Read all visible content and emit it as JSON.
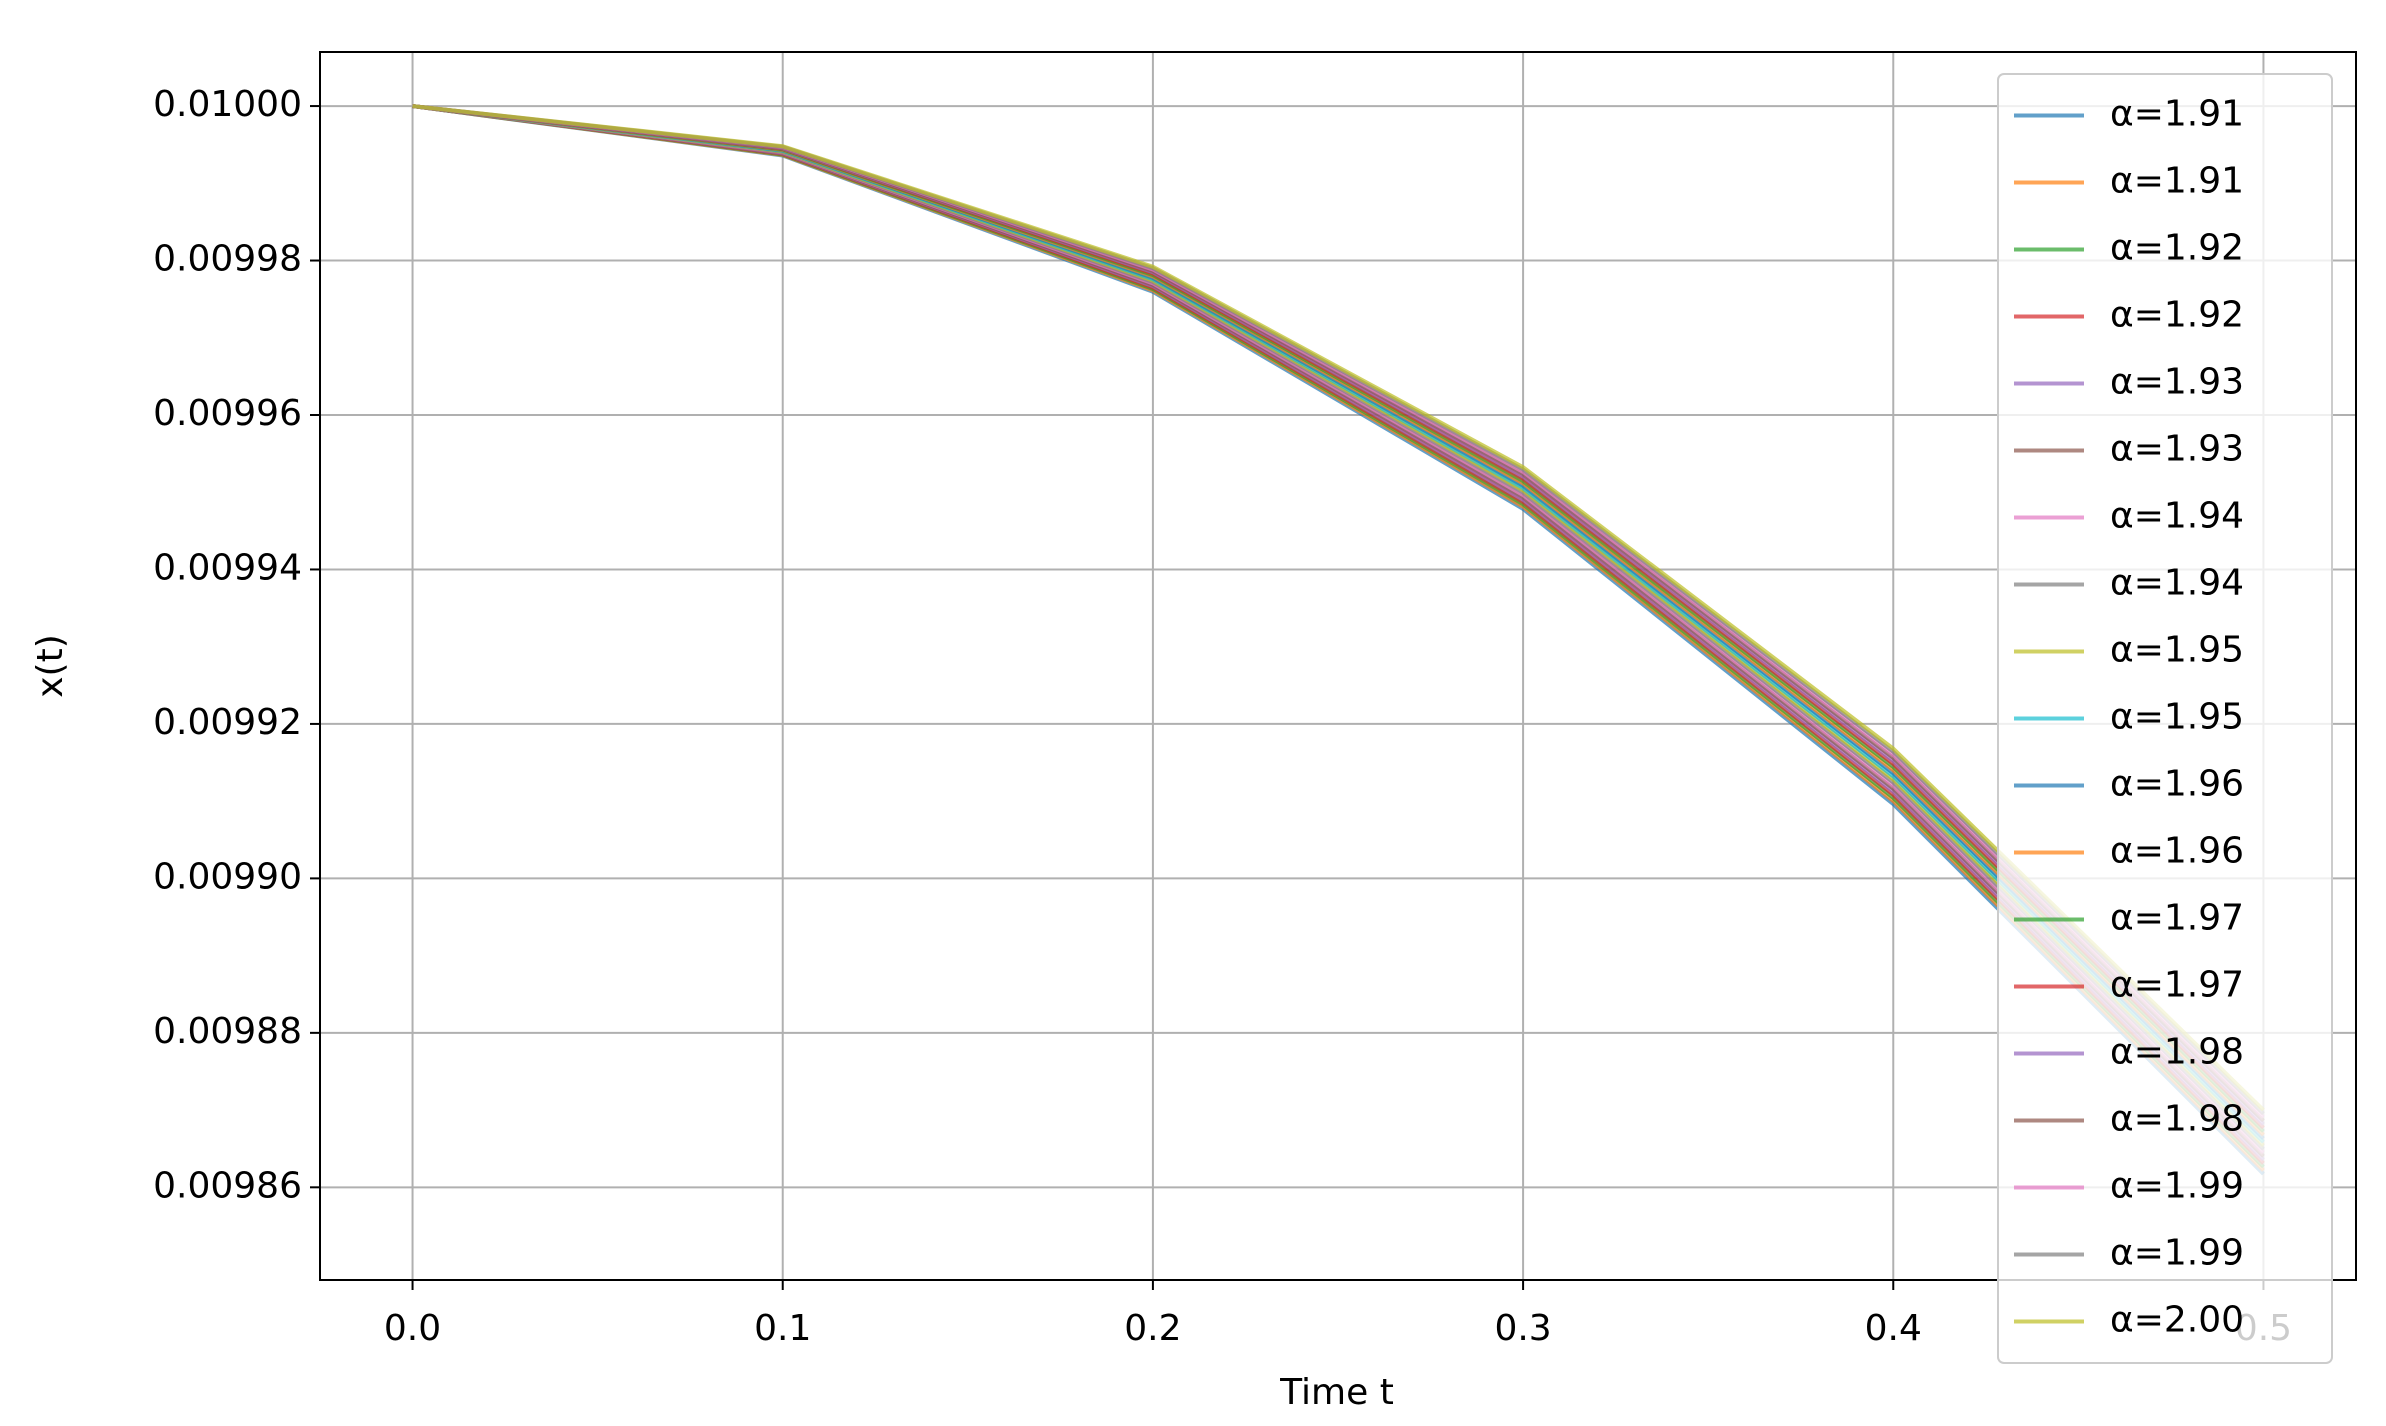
{
  "chart_data": {
    "type": "line",
    "xlabel": "Time t",
    "ylabel": "x(t)",
    "x": [
      0,
      0.1,
      0.2,
      0.3,
      0.4,
      0.5
    ],
    "xlim": [
      -0.025,
      0.525
    ],
    "xticks": [
      {
        "value": 0,
        "label": "0.0"
      },
      0.1,
      0.2,
      0.3,
      0.4,
      0.5
    ],
    "ylim": [
      0.009848,
      0.010007
    ],
    "yticks": [
      0.00986,
      0.00988,
      {
        "value": 0.0099,
        "label": "0.00990"
      },
      0.00992,
      0.00994,
      0.00996,
      0.00998,
      {
        "value": 0.01,
        "label": "0.01000"
      }
    ],
    "grid": true,
    "legend": "upper right",
    "series": [
      {
        "name": "α=1.91",
        "color": "#1f77b4",
        "values": [
          0.01,
          0.0099936,
          0.00997596,
          0.00994784,
          0.00990962,
          0.00986173
        ]
      },
      {
        "name": "α=1.91",
        "color": "#ff7f0e",
        "values": [
          0.01,
          0.00999367,
          0.00997614,
          0.00994814,
          0.00991002,
          0.00986219
        ]
      },
      {
        "name": "α=1.92",
        "color": "#2ca02c",
        "values": [
          0.01,
          0.00999373,
          0.00997632,
          0.00994844,
          0.00991042,
          0.00986265
        ]
      },
      {
        "name": "α=1.92",
        "color": "#d62728",
        "values": [
          0.01,
          0.0099938,
          0.0099765,
          0.00994874,
          0.00991082,
          0.00986311
        ]
      },
      {
        "name": "α=1.93",
        "color": "#9467bd",
        "values": [
          0.01,
          0.00999387,
          0.00997668,
          0.00994904,
          0.00991122,
          0.00986357
        ]
      },
      {
        "name": "α=1.93",
        "color": "#8c564b",
        "values": [
          0.01,
          0.00999393,
          0.00997686,
          0.00994934,
          0.00991161,
          0.00986402
        ]
      },
      {
        "name": "α=1.94",
        "color": "#e377c2",
        "values": [
          0.01,
          0.009994,
          0.00997704,
          0.00994964,
          0.00991201,
          0.00986448
        ]
      },
      {
        "name": "α=1.94",
        "color": "#7f7f7f",
        "values": [
          0.01,
          0.00999407,
          0.00997722,
          0.00994994,
          0.00991241,
          0.00986494
        ]
      },
      {
        "name": "α=1.95",
        "color": "#bcbd22",
        "values": [
          0.01,
          0.00999413,
          0.0099774,
          0.00995024,
          0.00991281,
          0.0098654
        ]
      },
      {
        "name": "α=1.95",
        "color": "#17becf",
        "values": [
          0.01,
          0.0099942,
          0.00997758,
          0.00995054,
          0.00991321,
          0.00986586
        ]
      },
      {
        "name": "α=1.96",
        "color": "#1f77b4",
        "values": [
          0.01,
          0.00999427,
          0.00997776,
          0.00995084,
          0.00991361,
          0.00986632
        ]
      },
      {
        "name": "α=1.96",
        "color": "#ff7f0e",
        "values": [
          0.01,
          0.00999433,
          0.00997794,
          0.00995114,
          0.00991401,
          0.00986678
        ]
      },
      {
        "name": "α=1.97",
        "color": "#2ca02c",
        "values": [
          0.01,
          0.0099944,
          0.00997812,
          0.00995144,
          0.00991441,
          0.00986724
        ]
      },
      {
        "name": "α=1.97",
        "color": "#d62728",
        "values": [
          0.01,
          0.00999447,
          0.0099783,
          0.00995174,
          0.00991481,
          0.0098677
        ]
      },
      {
        "name": "α=1.98",
        "color": "#9467bd",
        "values": [
          0.01,
          0.00999453,
          0.00997848,
          0.00995204,
          0.0099152,
          0.00986816
        ]
      },
      {
        "name": "α=1.98",
        "color": "#8c564b",
        "values": [
          0.01,
          0.0099946,
          0.00997866,
          0.00995234,
          0.0099156,
          0.00986861
        ]
      },
      {
        "name": "α=1.99",
        "color": "#e377c2",
        "values": [
          0.01,
          0.00999467,
          0.00997884,
          0.00995264,
          0.009916,
          0.00986907
        ]
      },
      {
        "name": "α=1.99",
        "color": "#7f7f7f",
        "values": [
          0.01,
          0.00999473,
          0.00997902,
          0.00995294,
          0.0099164,
          0.00986953
        ]
      },
      {
        "name": "α=2.00",
        "color": "#bcbd22",
        "values": [
          0.01,
          0.0099948,
          0.0099792,
          0.00995324,
          0.0099168,
          0.00987
        ]
      }
    ]
  }
}
